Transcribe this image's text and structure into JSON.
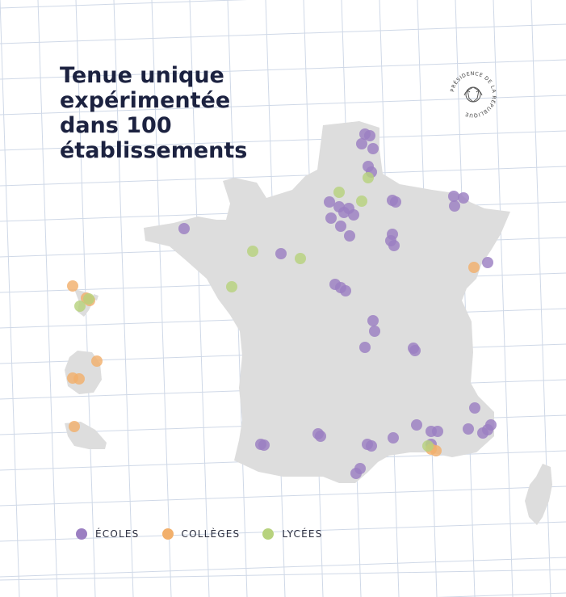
{
  "title_lines": [
    "Tenue unique",
    "expérimentée",
    "dans 100",
    "établissements"
  ],
  "emblem": {
    "text": "PRÉSIDENCE DE LA RÉPUBLIQUE",
    "icon": "rf-emblem-icon"
  },
  "colors": {
    "ecoles": "#9b7fc2",
    "colleges": "#f2b06c",
    "lycees": "#b7d27e",
    "land": "#dddddd",
    "grid": "#c7d2e3"
  },
  "legend": [
    {
      "key": "ecoles",
      "label": "ÉCOLES"
    },
    {
      "key": "colleges",
      "label": "COLLÈGES"
    },
    {
      "key": "lycees",
      "label": "LYCÉES"
    }
  ]
}
